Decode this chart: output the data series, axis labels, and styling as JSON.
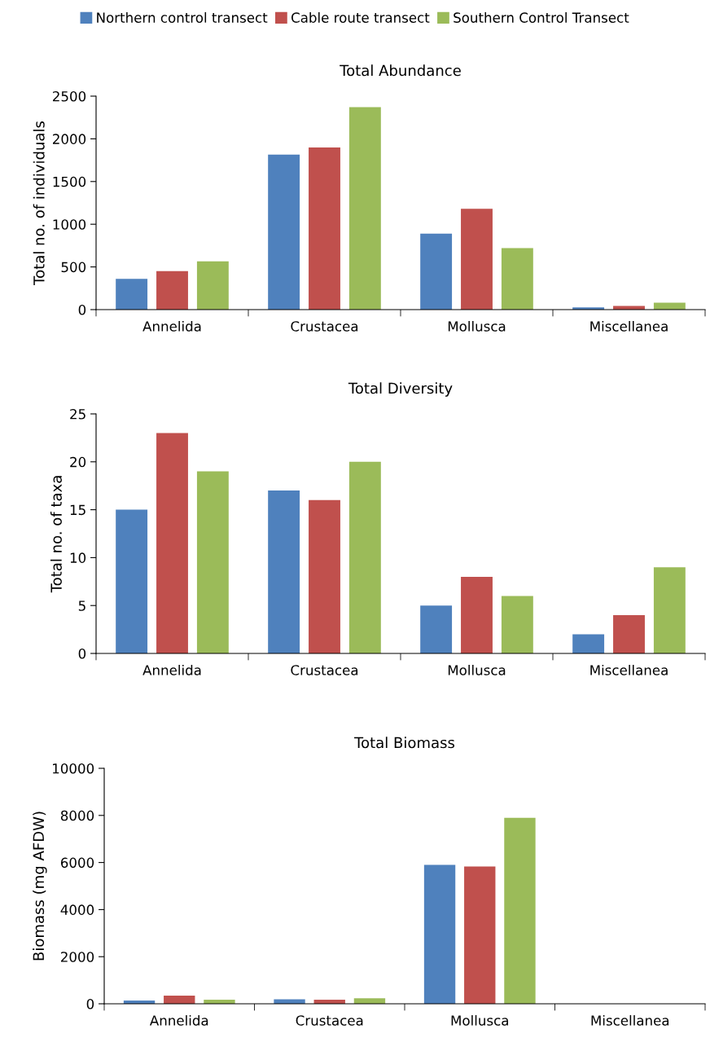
{
  "chart_data": [
    {
      "type": "bar",
      "title": "Total Abundance",
      "ylabel": "Total no. of individuals",
      "categories": [
        "Annelida",
        "Crustacea",
        "Mollusca",
        "Miscellanea"
      ],
      "series": [
        {
          "name": "Northern control transect",
          "color": "#4f81bd",
          "values": [
            360,
            1815,
            890,
            27
          ]
        },
        {
          "name": "Cable route transect",
          "color": "#c0504d",
          "values": [
            450,
            1900,
            1180,
            42
          ]
        },
        {
          "name": "Southern Control Transect",
          "color": "#9bbb59",
          "values": [
            565,
            2370,
            720,
            80
          ]
        }
      ],
      "ylim": [
        0,
        2500
      ],
      "yticks": [
        0,
        500,
        1000,
        1500,
        2000,
        2500
      ],
      "grid": false,
      "legend": "top"
    },
    {
      "type": "bar",
      "title": "Total Diversity",
      "ylabel": "Total no. of taxa",
      "categories": [
        "Annelida",
        "Crustacea",
        "Mollusca",
        "Miscellanea"
      ],
      "series": [
        {
          "color": "#4f81bd",
          "values": [
            15,
            17,
            5,
            2
          ]
        },
        {
          "color": "#c0504d",
          "values": [
            23,
            16,
            8,
            4
          ]
        },
        {
          "color": "#9bbb59",
          "values": [
            19,
            20,
            6,
            9
          ]
        }
      ],
      "ylim": [
        0,
        25
      ],
      "yticks": [
        0,
        5,
        10,
        15,
        20,
        25
      ],
      "grid": false
    },
    {
      "type": "bar",
      "title": "Total Biomass",
      "ylabel": "Biomass (mg AFDW)",
      "categories": [
        "Annelida",
        "Crustacea",
        "Mollusca",
        "Miscellanea"
      ],
      "series": [
        {
          "color": "#4f81bd",
          "values": [
            135,
            190,
            5900,
            0
          ]
        },
        {
          "color": "#c0504d",
          "values": [
            345,
            175,
            5830,
            0
          ]
        },
        {
          "color": "#9bbb59",
          "values": [
            175,
            230,
            7900,
            0
          ]
        }
      ],
      "ylim": [
        0,
        10000
      ],
      "yticks": [
        0,
        2000,
        4000,
        6000,
        8000,
        10000
      ],
      "grid": false
    }
  ]
}
